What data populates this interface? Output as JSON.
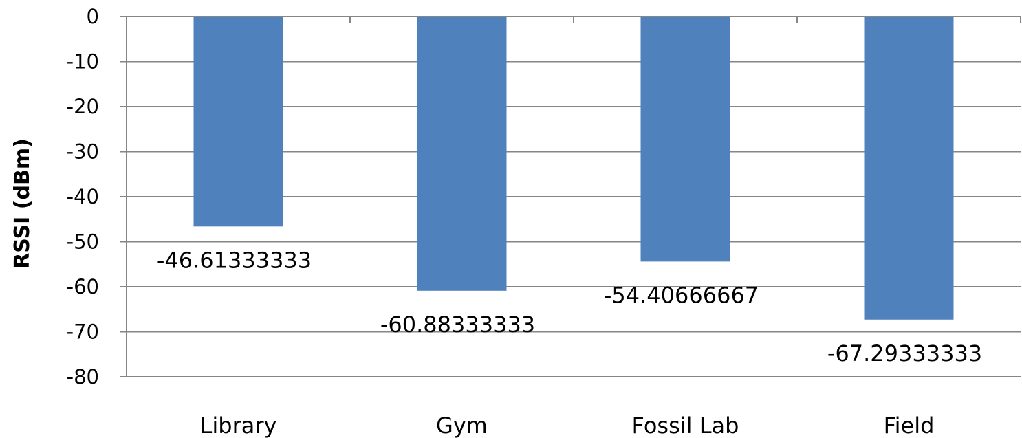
{
  "chart_data": {
    "type": "bar",
    "title": "",
    "xlabel": "",
    "ylabel": "RSSI (dBm)",
    "ylim": [
      -80,
      0
    ],
    "yticks": [
      0,
      -10,
      -20,
      -30,
      -40,
      -50,
      -60,
      -70,
      -80
    ],
    "grid": true,
    "legend": "none",
    "categories": [
      "Library",
      "Gym",
      "Fossil Lab",
      "Field"
    ],
    "values": [
      -46.61333333,
      -60.88333333,
      -54.40666667,
      -67.29333333
    ],
    "data_labels": [
      "-46.61333333",
      "-60.88333333",
      "-54.40666667",
      "-67.29333333"
    ],
    "bar_color": "#4F81BD",
    "gridline_color": "#868686"
  }
}
